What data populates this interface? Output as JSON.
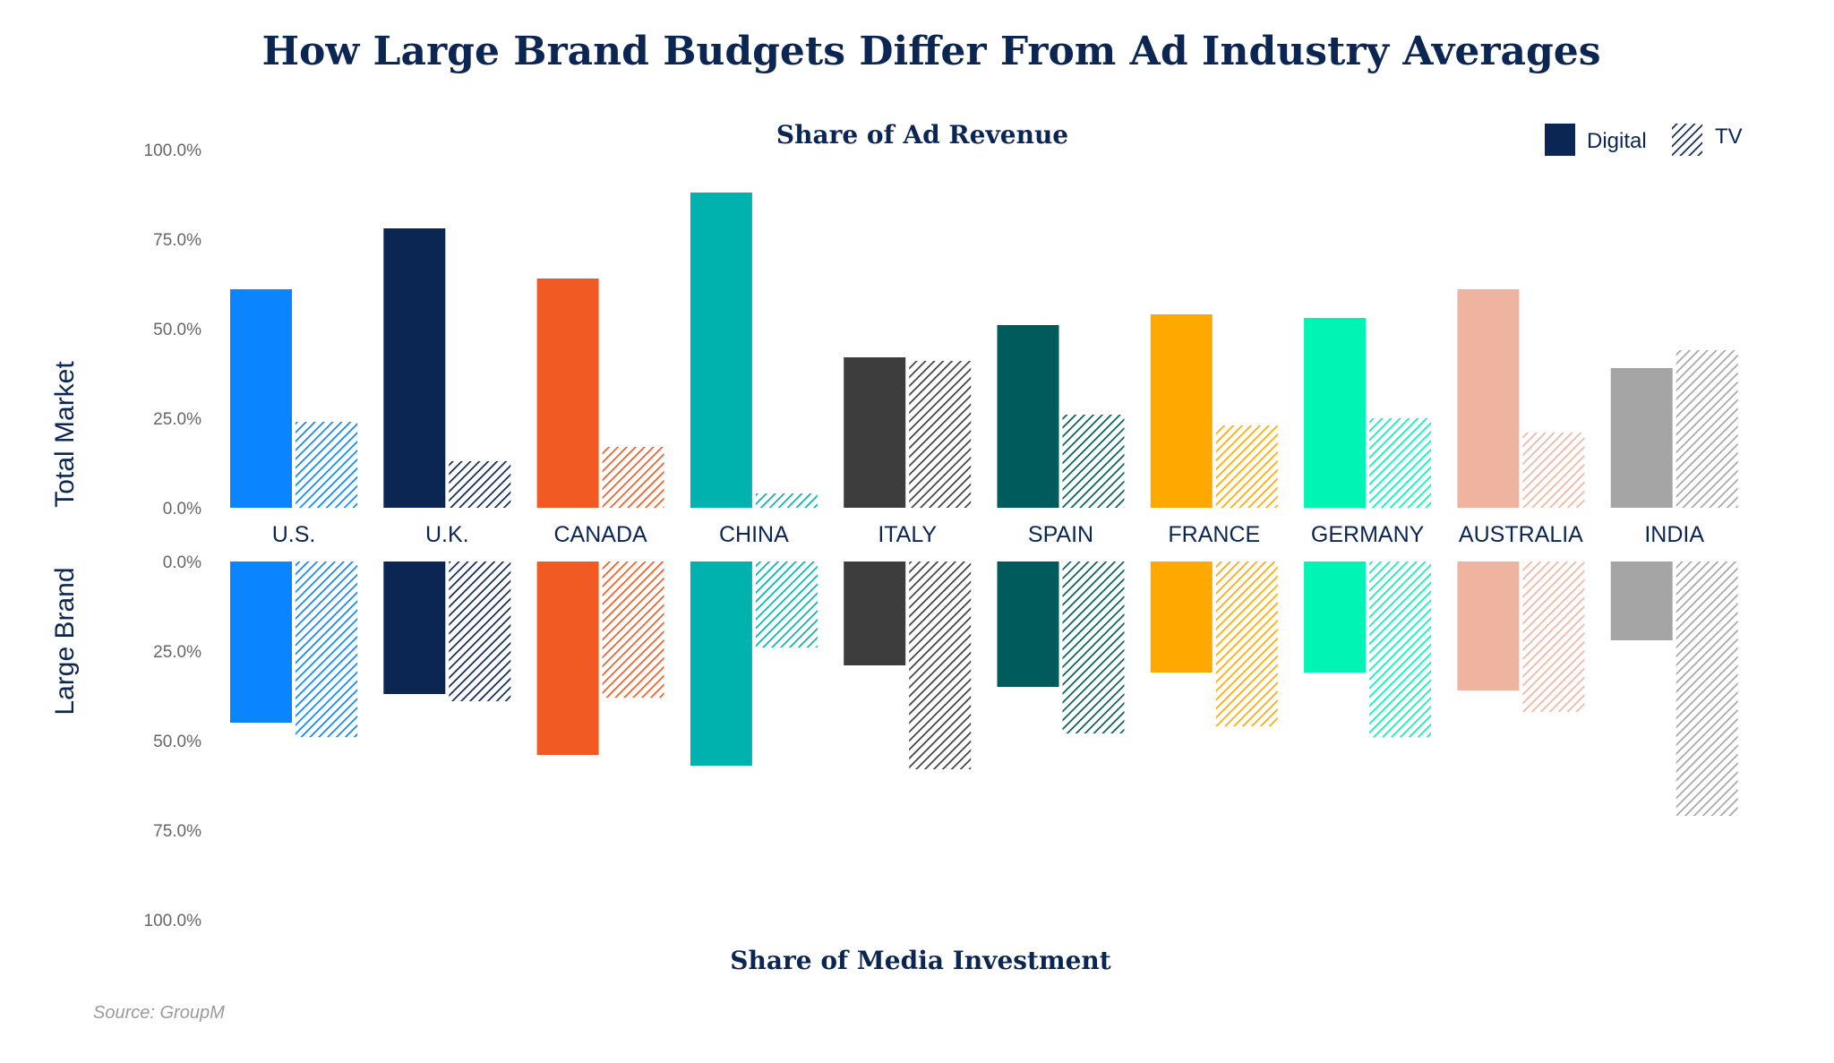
{
  "chart_data": {
    "type": "bar",
    "title": "How Large Brand Budgets Differ From Ad Industry Averages",
    "top_subtitle": "Share of Ad Revenue",
    "bottom_subtitle": "Share of Media Investment",
    "source": "Source: GroupM",
    "panels": {
      "top": {
        "label": "Total Market",
        "ylim": [
          0,
          100
        ],
        "ticks": [
          "100.0%",
          "75.0%",
          "50.0%",
          "25.0%",
          "0.0%"
        ],
        "tick_values": [
          100,
          75,
          50,
          25,
          0
        ]
      },
      "bottom": {
        "label": "Large Brand",
        "ylim": [
          0,
          100
        ],
        "inverted": true,
        "ticks": [
          "0.0%",
          "25.0%",
          "50.0%",
          "75.0%",
          "100.0%"
        ],
        "tick_values": [
          0,
          25,
          50,
          75,
          100
        ]
      }
    },
    "legend": {
      "position": "top-right",
      "items": [
        {
          "name": "Digital",
          "style": "solid"
        },
        {
          "name": "TV",
          "style": "hatched"
        }
      ]
    },
    "categories": [
      "U.S.",
      "U.K.",
      "CANADA",
      "CHINA",
      "ITALY",
      "SPAIN",
      "FRANCE",
      "GERMANY",
      "AUSTRALIA",
      "INDIA"
    ],
    "colors": [
      "#0a84ff",
      "#0c2654",
      "#f15a22",
      "#00b2ad",
      "#3d3d3d",
      "#005c5c",
      "#ffa800",
      "#00f5b4",
      "#eeb4a0",
      "#a5a5a5"
    ],
    "legend_color": "#0c2654",
    "series": [
      {
        "name": "Total Market Digital",
        "values": [
          61,
          78,
          64,
          88,
          42,
          51,
          54,
          53,
          61,
          39
        ]
      },
      {
        "name": "Total Market TV",
        "values": [
          24,
          13,
          17,
          4,
          41,
          26,
          23,
          25,
          21,
          44
        ]
      },
      {
        "name": "Large Brand Digital",
        "values": [
          45,
          37,
          54,
          57,
          29,
          35,
          31,
          31,
          36,
          22
        ]
      },
      {
        "name": "Large Brand TV",
        "values": [
          49,
          39,
          38,
          24,
          58,
          48,
          46,
          49,
          42,
          71
        ]
      }
    ]
  }
}
